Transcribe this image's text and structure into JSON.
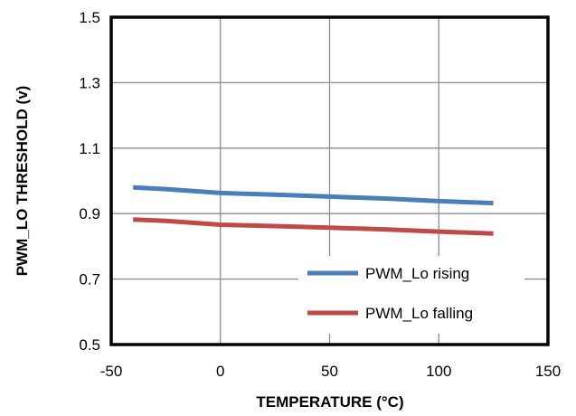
{
  "chart_data": {
    "type": "line",
    "xlabel": "TEMPERATURE  (°C)",
    "ylabel": "PWM_LO THRESHOLD  (v)",
    "xlim": [
      -50,
      150
    ],
    "ylim": [
      0.5,
      1.5
    ],
    "xticks": [
      -50,
      0,
      50,
      100,
      150
    ],
    "yticks": [
      0.5,
      0.7,
      0.9,
      1.1,
      1.3,
      1.5
    ],
    "xtick_labels": [
      "-50",
      "0",
      "50",
      "100",
      "150"
    ],
    "ytick_labels": [
      "0.5",
      "0.7",
      "0.9",
      "1.1",
      "1.3",
      "1.5"
    ],
    "grid": true,
    "legend_position": "bottom-right",
    "series": [
      {
        "name": "PWM_Lo rising",
        "color": "#4A7EBB",
        "x": [
          -40,
          -25,
          0,
          25,
          50,
          75,
          100,
          125
        ],
        "y": [
          0.98,
          0.975,
          0.963,
          0.958,
          0.952,
          0.946,
          0.938,
          0.932
        ]
      },
      {
        "name": "PWM_Lo falling",
        "color": "#BE4B48",
        "x": [
          -40,
          -25,
          0,
          25,
          50,
          75,
          100,
          125
        ],
        "y": [
          0.882,
          0.878,
          0.866,
          0.862,
          0.857,
          0.852,
          0.845,
          0.839
        ]
      }
    ]
  }
}
